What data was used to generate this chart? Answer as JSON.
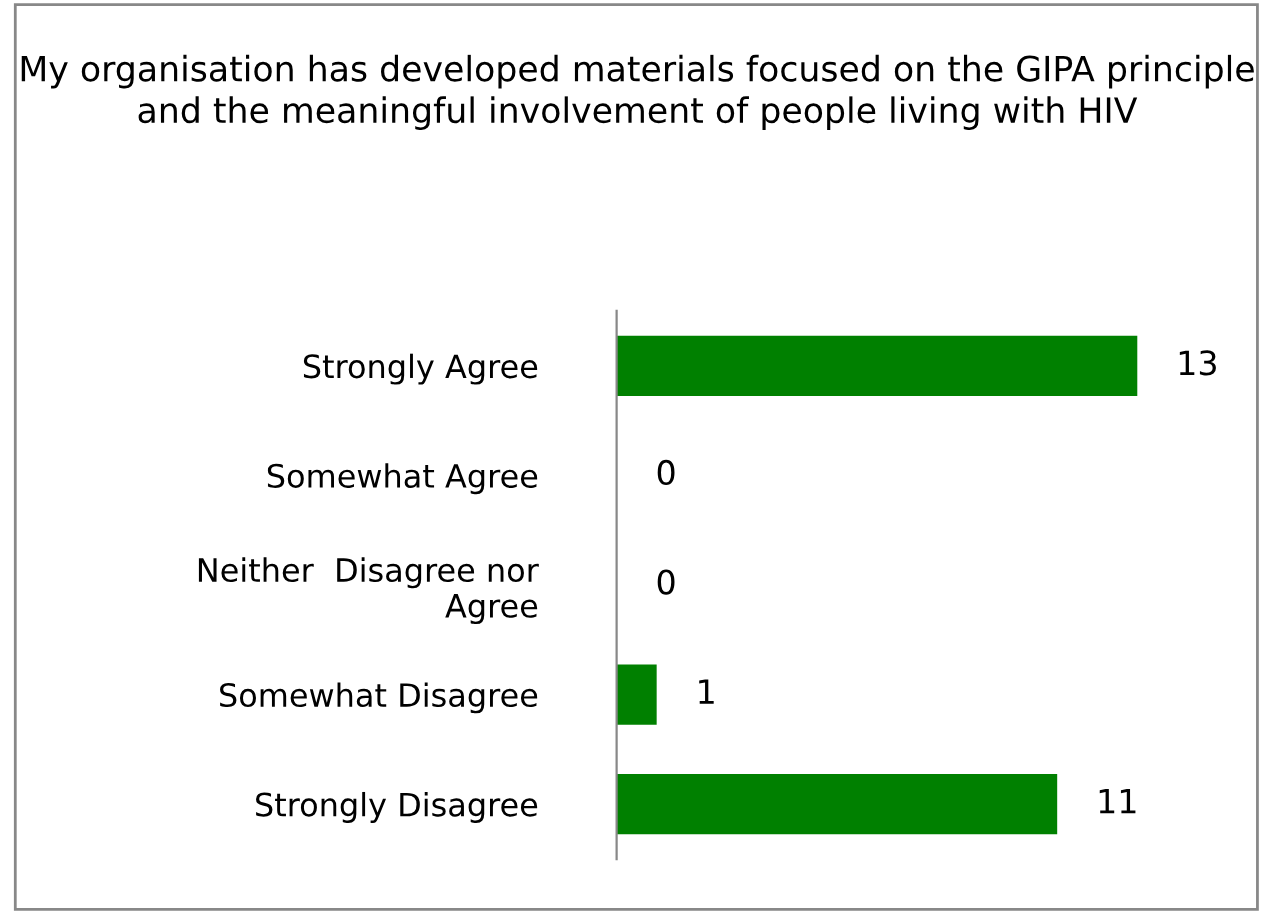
{
  "chart_data": {
    "type": "bar",
    "orientation": "horizontal",
    "title": "My organisation has developed materials focused on the GIPA principle and the meaningful involvement of people living with HIV",
    "categories": [
      "Strongly Agree",
      "Somewhat Agree",
      "Neither  Disagree nor\nAgree",
      "Somewhat Disagree",
      "Strongly Disagree"
    ],
    "values": [
      13,
      0,
      0,
      1,
      11
    ],
    "color": "#008000",
    "data_labels": true,
    "grid": false,
    "legend": false
  }
}
